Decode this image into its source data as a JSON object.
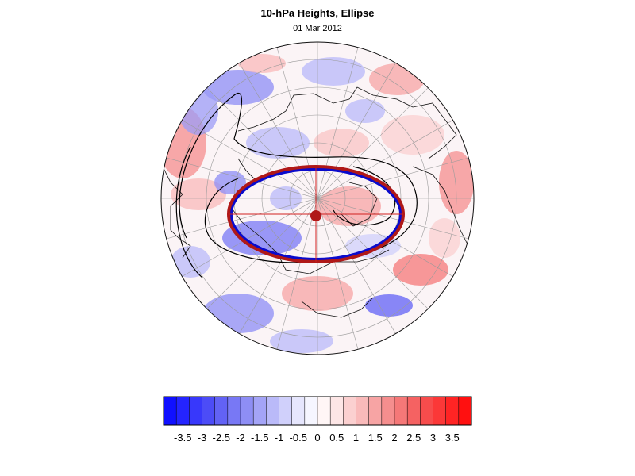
{
  "title": "10-hPa Heights, Ellipse",
  "subtitle": "01 Mar 2012",
  "colorbar": {
    "tick_labels": [
      "-3.5",
      "-3",
      "-2.5",
      "-2",
      "-1.5",
      "-1",
      "-0.5",
      "0",
      "0.5",
      "1",
      "1.5",
      "2",
      "2.5",
      "3",
      "3.5"
    ],
    "colors": [
      "#1010ff",
      "#2424ff",
      "#3838fb",
      "#4c4cf7",
      "#6262f5",
      "#7878f5",
      "#8e8ef5",
      "#a4a4f7",
      "#babaf9",
      "#d0d0fb",
      "#e6e6fd",
      "#f6f6ff",
      "#fff6f6",
      "#fde6e6",
      "#fbd0d0",
      "#f9baba",
      "#f7a4a4",
      "#f58e8e",
      "#f57878",
      "#f56262",
      "#f74c4c",
      "#fb3838",
      "#ff2424",
      "#ff1010"
    ]
  },
  "colors": {
    "ellipse_red": "#b01818",
    "ellipse_blue": "#0a0acc",
    "axis_red": "#d02020"
  }
}
